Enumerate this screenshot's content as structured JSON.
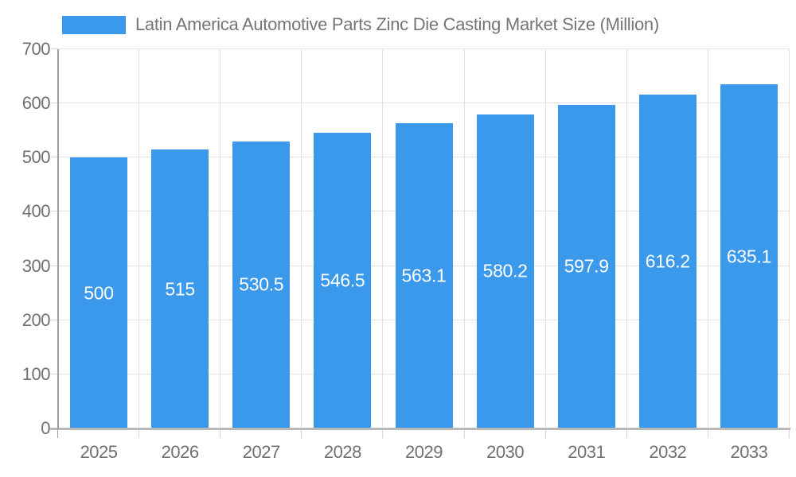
{
  "legend": {
    "label": "Latin America Automotive Parts Zinc Die Casting Market Size (Million)"
  },
  "chart_data": {
    "type": "bar",
    "title": "Latin America Automotive Parts Zinc Die Casting Market Size (Million)",
    "categories": [
      "2025",
      "2026",
      "2027",
      "2028",
      "2029",
      "2030",
      "2031",
      "2032",
      "2033"
    ],
    "values": [
      500,
      515,
      530.5,
      546.5,
      563.1,
      580.2,
      597.9,
      616.2,
      635.1
    ],
    "value_labels": [
      "500",
      "515",
      "530.5",
      "546.5",
      "563.1",
      "580.2",
      "597.9",
      "616.2",
      "635.1"
    ],
    "xlabel": "",
    "ylabel": "",
    "ylim": [
      0,
      700
    ],
    "yticks": [
      0,
      100,
      200,
      300,
      400,
      500,
      600,
      700
    ],
    "ytick_labels": [
      "0",
      "100",
      "200",
      "300",
      "400",
      "500",
      "600",
      "700"
    ],
    "grid": true,
    "legend_position": "top-left"
  },
  "colors": {
    "bar": "#3B99EC",
    "bar_label": "#FFFFFF",
    "grid": "#E2E2E2",
    "y_axis_line": "#9E9E9E",
    "x_axis_line": "#B8B8B8",
    "tick": "#D6D6D6",
    "tick_text": "#707070",
    "title_text": "#757575"
  }
}
